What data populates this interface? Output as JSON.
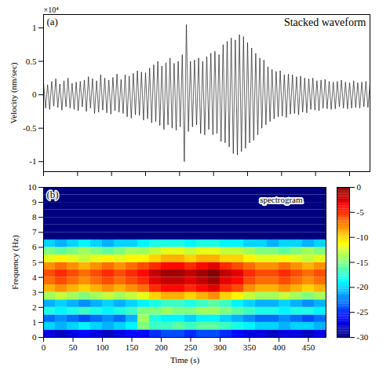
{
  "chart_data": [
    {
      "type": "line",
      "panel": "(a)",
      "title": "Stacked waveform",
      "ylabel": "Velocity (nm/sec)",
      "annotations": [
        "×10⁴"
      ],
      "x": [
        0,
        3,
        6,
        9,
        12,
        15,
        18,
        21,
        24,
        27,
        30,
        33,
        36,
        39,
        42,
        45,
        48,
        51,
        54,
        57,
        60,
        63,
        66,
        69,
        72,
        75,
        78,
        81,
        84,
        87,
        90,
        93,
        96,
        99,
        102,
        105,
        108,
        111,
        114,
        117,
        120,
        123,
        126,
        129,
        132,
        135,
        138,
        141,
        144,
        147,
        150,
        153,
        156,
        159,
        162,
        165,
        168,
        171,
        174,
        177,
        180,
        183,
        186,
        189,
        192,
        195,
        198,
        201,
        204,
        207,
        210,
        213,
        216,
        219,
        222,
        225,
        228,
        231,
        234,
        237,
        240,
        243,
        246,
        249,
        252,
        255,
        258,
        261,
        264,
        267,
        270,
        273,
        276,
        279,
        282,
        285,
        288,
        291,
        294,
        297,
        300,
        303,
        306,
        309,
        312,
        315,
        318,
        321,
        324,
        327,
        330,
        333,
        336,
        339,
        342,
        345,
        348,
        351,
        354,
        357,
        360,
        363,
        366,
        369,
        372,
        375,
        378,
        381,
        384,
        387,
        390,
        393,
        396,
        399,
        402,
        405,
        408,
        411,
        414,
        417,
        420,
        423,
        426,
        429,
        432,
        435,
        438,
        441,
        444,
        447,
        450,
        453,
        456,
        459,
        462,
        465,
        468,
        471,
        474,
        477,
        480
      ],
      "values": [
        0.18,
        -0.2,
        0.15,
        -0.22,
        0.2,
        -0.17,
        0.24,
        -0.19,
        0.16,
        -0.23,
        0.21,
        -0.18,
        0.25,
        -0.2,
        0.17,
        -0.22,
        0.19,
        -0.24,
        0.2,
        -0.18,
        0.22,
        -0.25,
        0.27,
        -0.2,
        0.24,
        -0.28,
        0.21,
        -0.26,
        0.3,
        -0.23,
        0.25,
        -0.27,
        0.22,
        -0.29,
        0.26,
        -0.24,
        0.31,
        -0.26,
        0.23,
        -0.28,
        0.3,
        -0.33,
        0.28,
        -0.35,
        0.32,
        -0.3,
        0.36,
        -0.31,
        0.34,
        -0.38,
        0.33,
        -0.36,
        0.4,
        -0.42,
        0.45,
        -0.4,
        0.5,
        -0.46,
        0.43,
        -0.52,
        0.48,
        -0.45,
        0.55,
        -0.5,
        0.47,
        -0.53,
        0.5,
        -0.48,
        0.6,
        -1.0,
        1.05,
        -0.55,
        0.5,
        -0.48,
        0.52,
        -0.45,
        0.55,
        -0.58,
        0.5,
        -0.6,
        0.57,
        -0.52,
        0.62,
        -0.6,
        0.65,
        -0.58,
        0.6,
        -0.7,
        0.75,
        -0.72,
        0.8,
        -0.78,
        0.85,
        -0.88,
        0.82,
        -0.9,
        0.9,
        -0.85,
        0.87,
        -0.8,
        0.78,
        -0.72,
        0.7,
        -0.68,
        0.62,
        -0.6,
        0.55,
        -0.5,
        0.52,
        -0.45,
        0.42,
        -0.4,
        0.38,
        -0.36,
        0.35,
        -0.33,
        0.36,
        -0.32,
        0.3,
        -0.34,
        0.31,
        -0.29,
        0.3,
        -0.28,
        0.27,
        -0.3,
        0.28,
        -0.26,
        0.25,
        -0.27,
        0.24,
        -0.22,
        0.25,
        -0.23,
        0.21,
        -0.24,
        0.22,
        -0.2,
        0.23,
        -0.21,
        0.2,
        -0.22,
        0.19,
        -0.21,
        0.2,
        -0.18,
        0.22,
        -0.2,
        0.19,
        -0.21,
        0.18,
        -0.2,
        0.21,
        -0.19,
        0.18,
        -0.2,
        0.19,
        -0.18,
        0.2,
        -0.19,
        0.17
      ],
      "color": "#000000",
      "xlim": [
        0,
        480
      ],
      "xticks": [
        0,
        50,
        100,
        150,
        200,
        250,
        300,
        350,
        400,
        450
      ],
      "ylim": [
        -1.15,
        1.2
      ],
      "yticks": [
        -1,
        -0.5,
        0,
        0.5,
        1
      ],
      "tick_labels": "y"
    },
    {
      "type": "heatmap",
      "panel": "(b)",
      "title": "spectrogram",
      "xlabel": "Time (s)",
      "ylabel": "Frequency (Hz)",
      "time_bins": [
        0,
        20,
        40,
        60,
        80,
        100,
        120,
        140,
        160,
        180,
        200,
        220,
        240,
        260,
        280,
        300,
        320,
        340,
        360,
        380,
        400,
        420,
        440,
        460,
        480
      ],
      "frequency_bins": [
        0,
        0.5,
        1,
        1.5,
        2,
        2.5,
        3,
        3.5,
        4,
        4.5,
        5,
        5.5,
        6,
        6.5,
        7,
        7.5,
        8,
        8.5,
        9,
        9.5,
        10
      ],
      "cells": [
        [
          -27,
          -28,
          -27,
          -26,
          -27,
          -28,
          -27,
          -26,
          -26,
          -25,
          -24,
          -24,
          -25,
          -24,
          -24,
          -25,
          -26,
          -27,
          -27,
          -28,
          -27,
          -27,
          -28,
          -27
        ],
        [
          -20,
          -21,
          -20,
          -19,
          -20,
          -21,
          -20,
          -19,
          -15,
          -17,
          -17,
          -16,
          -17,
          -16,
          -16,
          -17,
          -18,
          -19,
          -20,
          -20,
          -21,
          -20,
          -20,
          -21
        ],
        [
          -23,
          -22,
          -23,
          -24,
          -23,
          -22,
          -23,
          -21,
          -14,
          -18,
          -19,
          -19,
          -20,
          -19,
          -19,
          -20,
          -21,
          -22,
          -23,
          -23,
          -22,
          -23,
          -24,
          -23
        ],
        [
          -18,
          -19,
          -18,
          -17,
          -18,
          -19,
          -18,
          -17,
          -15,
          -15,
          -14,
          -15,
          -15,
          -14,
          -14,
          -15,
          -16,
          -17,
          -18,
          -18,
          -19,
          -18,
          -18,
          -19
        ],
        [
          -21,
          -20,
          -21,
          -22,
          -21,
          -20,
          -21,
          -20,
          -19,
          -18,
          -17,
          -17,
          -18,
          -17,
          -16,
          -17,
          -19,
          -20,
          -21,
          -21,
          -20,
          -21,
          -22,
          -21
        ],
        [
          -14,
          -13,
          -14,
          -15,
          -14,
          -13,
          -14,
          -13,
          -12,
          -10,
          -9,
          -9,
          -10,
          -9,
          -8,
          -10,
          -11,
          -13,
          -14,
          -14,
          -13,
          -14,
          -15,
          -14
        ],
        [
          -9,
          -8,
          -9,
          -10,
          -9,
          -8,
          -9,
          -8,
          -7,
          -5,
          -4,
          -4,
          -5,
          -4,
          -3,
          -5,
          -6,
          -8,
          -9,
          -9,
          -8,
          -9,
          -10,
          -9
        ],
        [
          -7,
          -6,
          -7,
          -8,
          -7,
          -6,
          -7,
          -6,
          -5,
          -3,
          -2,
          -2,
          -3,
          -2,
          -1,
          -3,
          -4,
          -6,
          -7,
          -7,
          -6,
          -7,
          -8,
          -7
        ],
        [
          -6,
          -5,
          -6,
          -7,
          -6,
          -5,
          -6,
          -5,
          -4,
          -2,
          -1,
          -1,
          -2,
          -1,
          0,
          -2,
          -3,
          -5,
          -6,
          -6,
          -5,
          -6,
          -7,
          -6
        ],
        [
          -8,
          -7,
          -8,
          -9,
          -8,
          -7,
          -8,
          -7,
          -6,
          -5,
          -4,
          -4,
          -5,
          -4,
          -3,
          -5,
          -6,
          -7,
          -8,
          -8,
          -7,
          -8,
          -9,
          -8
        ],
        [
          -12,
          -11,
          -12,
          -13,
          -12,
          -11,
          -12,
          -11,
          -11,
          -10,
          -9,
          -9,
          -10,
          -9,
          -9,
          -10,
          -10,
          -11,
          -12,
          -12,
          -11,
          -12,
          -13,
          -12
        ],
        [
          -15,
          -16,
          -15,
          -14,
          -15,
          -16,
          -15,
          -14,
          -14,
          -13,
          -12,
          -12,
          -13,
          -12,
          -12,
          -13,
          -13,
          -14,
          -15,
          -15,
          -16,
          -15,
          -14,
          -15
        ],
        [
          -20,
          -21,
          -20,
          -19,
          -20,
          -21,
          -20,
          -20,
          -19,
          -18,
          -18,
          -18,
          -19,
          -18,
          -18,
          -19,
          -19,
          -20,
          -20,
          -21,
          -20,
          -20,
          -21,
          -20
        ],
        [
          -30,
          -30,
          -30,
          -30,
          -30,
          -30,
          -30,
          -30,
          -30,
          -30,
          -30,
          -30,
          -30,
          -30,
          -30,
          -30,
          -30,
          -30,
          -30,
          -30,
          -30,
          -30,
          -30,
          -30
        ],
        [
          -30,
          -30,
          -30,
          -30,
          -30,
          -30,
          -30,
          -30,
          -30,
          -30,
          -30,
          -30,
          -30,
          -30,
          -30,
          -30,
          -30,
          -30,
          -30,
          -30,
          -30,
          -30,
          -30,
          -30
        ],
        [
          -30,
          -30,
          -30,
          -30,
          -30,
          -30,
          -30,
          -30,
          -30,
          -30,
          -30,
          -30,
          -30,
          -30,
          -30,
          -30,
          -30,
          -30,
          -30,
          -30,
          -30,
          -30,
          -30,
          -30
        ],
        [
          -30,
          -30,
          -30,
          -30,
          -30,
          -30,
          -30,
          -30,
          -30,
          -30,
          -30,
          -30,
          -30,
          -30,
          -30,
          -30,
          -30,
          -30,
          -30,
          -30,
          -30,
          -30,
          -30,
          -30
        ],
        [
          -30,
          -30,
          -30,
          -30,
          -30,
          -30,
          -30,
          -30,
          -30,
          -30,
          -30,
          -30,
          -30,
          -30,
          -30,
          -30,
          -30,
          -30,
          -30,
          -30,
          -30,
          -30,
          -30,
          -30
        ],
        [
          -30,
          -30,
          -30,
          -30,
          -30,
          -30,
          -30,
          -30,
          -30,
          -30,
          -30,
          -30,
          -30,
          -30,
          -30,
          -30,
          -30,
          -30,
          -30,
          -30,
          -30,
          -30,
          -30,
          -30
        ],
        [
          -30,
          -30,
          -30,
          -30,
          -30,
          -30,
          -30,
          -30,
          -30,
          -30,
          -30,
          -30,
          -30,
          -30,
          -30,
          -30,
          -30,
          -30,
          -30,
          -30,
          -30,
          -30,
          -30,
          -30
        ]
      ],
      "xlim": [
        0,
        480
      ],
      "xticks": [
        0,
        50,
        100,
        150,
        200,
        250,
        300,
        350,
        400,
        450
      ],
      "ylim": [
        0,
        10
      ],
      "yticks": [
        0,
        1,
        2,
        3,
        4,
        5,
        6,
        7,
        8,
        9,
        10
      ],
      "colorbar_range": [
        -30,
        0
      ],
      "colorbar_ticks": [
        0,
        -5,
        -10,
        -15,
        -20,
        -25,
        -30
      ]
    }
  ]
}
